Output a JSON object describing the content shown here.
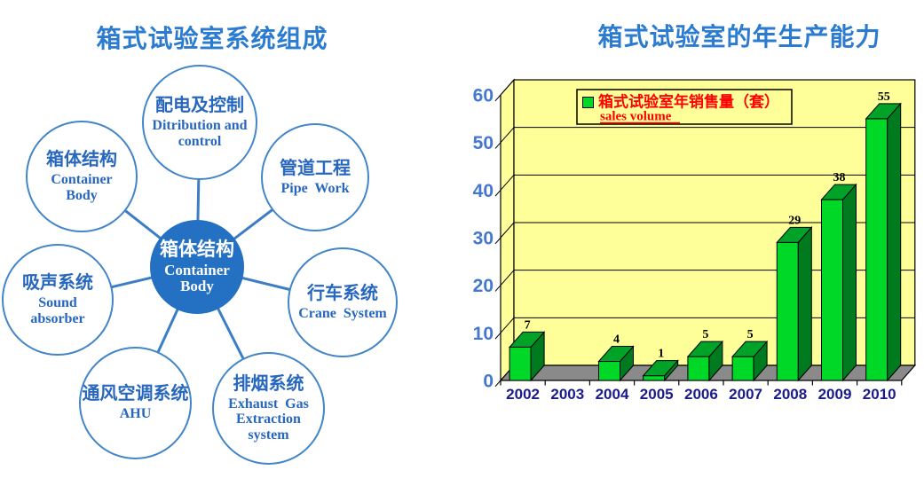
{
  "page": {
    "background": "#FFFFFF"
  },
  "left_panel": {
    "title": "箱式试验室系统组成",
    "title_color": "#2B7BD0",
    "center_node": {
      "zh": "箱体结构",
      "en": "Container\nBody"
    },
    "nodes": [
      {
        "id": "distribution-control",
        "zh": "配电及控制",
        "en": "Ditribution and\ncontrol"
      },
      {
        "id": "container-body",
        "zh": "箱体结构",
        "en": "Container\nBody"
      },
      {
        "id": "pipe-work",
        "zh": "管道工程",
        "en": "Pipe  Work"
      },
      {
        "id": "sound-absorber",
        "zh": "吸声系统",
        "en": "Sound\nabsorber"
      },
      {
        "id": "crane-system",
        "zh": "行车系统",
        "en": "Crane  System"
      },
      {
        "id": "ahu",
        "zh": "通风空调系统",
        "en": "AHU"
      },
      {
        "id": "exhaust-gas-extraction",
        "zh": "排烟系统",
        "en": "Exhaust  Gas\nExtraction\nsystem"
      }
    ]
  },
  "right_panel": {
    "title": "箱式试验室的年生产能力",
    "title_color": "#2B7BD0"
  },
  "chart_data": {
    "type": "bar",
    "style": "3d-column",
    "title": "箱式试验室的年生产能力",
    "categories": [
      "2002",
      "2003",
      "2004",
      "2005",
      "2006",
      "2007",
      "2008",
      "2009",
      "2010"
    ],
    "series": [
      {
        "name": "箱式试验室年销售量（套）",
        "name_en": "sales volume",
        "values": [
          7,
          0,
          4,
          1,
          5,
          5,
          29,
          38,
          55
        ]
      }
    ],
    "ylim": [
      0,
      60
    ],
    "yticks": [
      0,
      10,
      20,
      30,
      40,
      50,
      60
    ],
    "grid": true,
    "legend_position": "top-left-inside",
    "colors": {
      "plot_bg": "#FFFF99",
      "floor": "#8A8A8A",
      "bar_front": "#00D828",
      "bar_top": "#00A228",
      "bar_side": "#007A1E",
      "legend_text": "#FF0000",
      "y_labels": "#4477D0",
      "x_labels": "#1B1B8A",
      "outline": "#000000"
    }
  }
}
